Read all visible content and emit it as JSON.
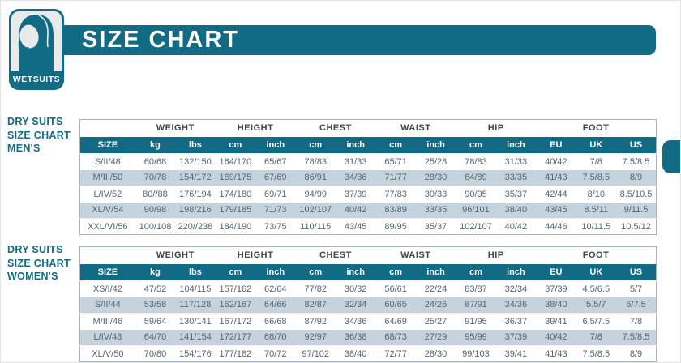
{
  "colors": {
    "teal": "#126b85",
    "row_alt": "#c6d3dc",
    "table_border": "#a7b4bc",
    "group_text": "#3e474d",
    "data_text": "#55646f",
    "logo_bg": "#e9ebeb"
  },
  "brand": {
    "logo_label": "WETSUITS",
    "logo_icon": "wetsuit-hood-icon"
  },
  "header": {
    "title": "SIZE CHART"
  },
  "sections": [
    {
      "label": "DRY SUITS\nSIZE CHART\nMEN'S"
    },
    {
      "label": "DRY SUITS\nSIZE CHART\nWOMEN'S"
    }
  ],
  "tables": [
    {
      "name": "mens-dry-suits",
      "column_groups": [
        {
          "label": "",
          "span": 1
        },
        {
          "label": "WEIGHT",
          "span": 2
        },
        {
          "label": "HEIGHT",
          "span": 2
        },
        {
          "label": "CHEST",
          "span": 2
        },
        {
          "label": "WAIST",
          "span": 2
        },
        {
          "label": "HIP",
          "span": 2
        },
        {
          "label": "FOOT",
          "span": 3
        }
      ],
      "columns": [
        "SIZE",
        "kg",
        "lbs",
        "cm",
        "inch",
        "cm",
        "inch",
        "cm",
        "inch",
        "cm",
        "inch",
        "EU",
        "UK",
        "US"
      ],
      "rows": [
        [
          "S/II/48",
          "60/68",
          "132/150",
          "164/170",
          "65/67",
          "78/83",
          "31/33",
          "65/71",
          "25/28",
          "78/83",
          "31/33",
          "40/42",
          "7/8",
          "7.5/8.5"
        ],
        [
          "M/III/50",
          "70/78",
          "154/172",
          "169/175",
          "67/69",
          "86/91",
          "34/36",
          "71/77",
          "28/30",
          "84/89",
          "33/35",
          "41/43",
          "7.5/8.5",
          "8/9"
        ],
        [
          "L/IV/52",
          "80//88",
          "176/194",
          "174/180",
          "69/71",
          "94/99",
          "37/39",
          "77/83",
          "30/33",
          "90/95",
          "35/37",
          "42/44",
          "8/10",
          "8.5/10.5"
        ],
        [
          "XL/V/54",
          "90/98",
          "198/216",
          "179/185",
          "71/73",
          "102/107",
          "40/42",
          "83/89",
          "33/35",
          "96/101",
          "38/40",
          "43/45",
          "8.5/11",
          "9/11.5"
        ],
        [
          "XXL/VI/56",
          "100/108",
          "220//238",
          "184/190",
          "73/75",
          "110/115",
          "43/45",
          "89/95",
          "35/37",
          "102/107",
          "40/42",
          "44/46",
          "10/11.5",
          "10.5/12"
        ]
      ]
    },
    {
      "name": "womens-dry-suits",
      "column_groups": [
        {
          "label": "",
          "span": 1
        },
        {
          "label": "WEIGHT",
          "span": 2
        },
        {
          "label": "HEIGHT",
          "span": 2
        },
        {
          "label": "CHEST",
          "span": 2
        },
        {
          "label": "WAIST",
          "span": 2
        },
        {
          "label": "HIP",
          "span": 2
        },
        {
          "label": "FOOT",
          "span": 3
        }
      ],
      "columns": [
        "SIZE",
        "kg",
        "lbs",
        "cm",
        "inch",
        "cm",
        "inch",
        "cm",
        "inch",
        "cm",
        "inch",
        "EU",
        "UK",
        "US"
      ],
      "rows": [
        [
          "XS/I/42",
          "47/52",
          "104/115",
          "157/162",
          "62/64",
          "77/82",
          "30/32",
          "56/61",
          "22/24",
          "83/87",
          "32/34",
          "37/39",
          "4.5/6.5",
          "5/7"
        ],
        [
          "S/II/44",
          "53/58",
          "117/128",
          "162/167",
          "64/66",
          "82/87",
          "32/34",
          "60/65",
          "24/26",
          "87/91",
          "34/36",
          "38/40",
          "5.5/7",
          "6/7.5"
        ],
        [
          "M/III/46",
          "59/64",
          "130/141",
          "167/172",
          "66/68",
          "87/92",
          "34/36",
          "64/69",
          "25/27",
          "91/95",
          "36/37",
          "39/41",
          "6.5/7.5",
          "7/8"
        ],
        [
          "L/IV/48",
          "64/70",
          "141/154",
          "172/177",
          "68/70",
          "92/97",
          "36/38",
          "68/73",
          "27/29",
          "95/99",
          "37/39",
          "40/42",
          "7/8",
          "7.5/8.5"
        ],
        [
          "XL/V/50",
          "70/80",
          "154/176",
          "177/182",
          "70/72",
          "97/102",
          "38/40",
          "72/77",
          "28/30",
          "99/103",
          "39/41",
          "41/43",
          "7.5/8.5",
          "8/9"
        ]
      ]
    }
  ]
}
